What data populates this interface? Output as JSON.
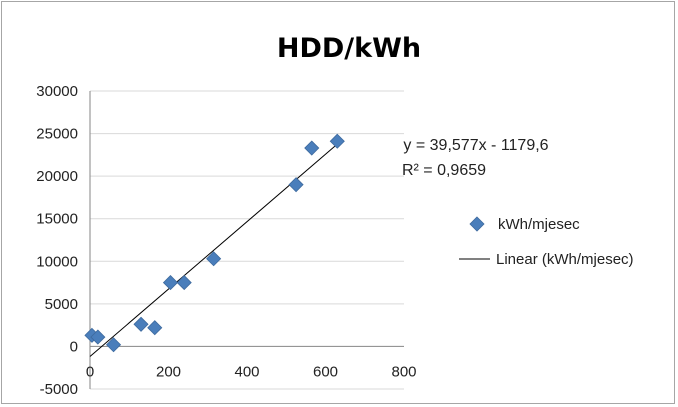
{
  "chart_data": {
    "type": "scatter",
    "title": "HDD/kWh",
    "xlabel": "",
    "ylabel": "",
    "xlim": [
      0,
      800
    ],
    "ylim": [
      -5000,
      30000
    ],
    "x_ticks": [
      "0",
      "200",
      "400",
      "600",
      "800"
    ],
    "y_ticks": [
      "-5000",
      "0",
      "5000",
      "10000",
      "15000",
      "20000",
      "25000",
      "30000"
    ],
    "grid": "horizontal",
    "legend_position": "right",
    "series": [
      {
        "name": "kWh/mjesec",
        "marker": "diamond",
        "color": "#4a7ebb",
        "points": [
          {
            "x": 5,
            "y": 1300
          },
          {
            "x": 20,
            "y": 1100
          },
          {
            "x": 60,
            "y": 200
          },
          {
            "x": 130,
            "y": 2600
          },
          {
            "x": 165,
            "y": 2200
          },
          {
            "x": 205,
            "y": 7500
          },
          {
            "x": 240,
            "y": 7500
          },
          {
            "x": 315,
            "y": 10300
          },
          {
            "x": 525,
            "y": 19000
          },
          {
            "x": 565,
            "y": 23300
          },
          {
            "x": 630,
            "y": 24100
          }
        ]
      }
    ],
    "trendline": {
      "name": "Linear (kWh/mjesec)",
      "slope": 39.577,
      "intercept": -1179.6,
      "x_range": [
        0,
        630
      ],
      "color": "#000000",
      "equation": "y = 39,577x - 1179,6",
      "r_squared": "R² = 0,9659"
    }
  }
}
